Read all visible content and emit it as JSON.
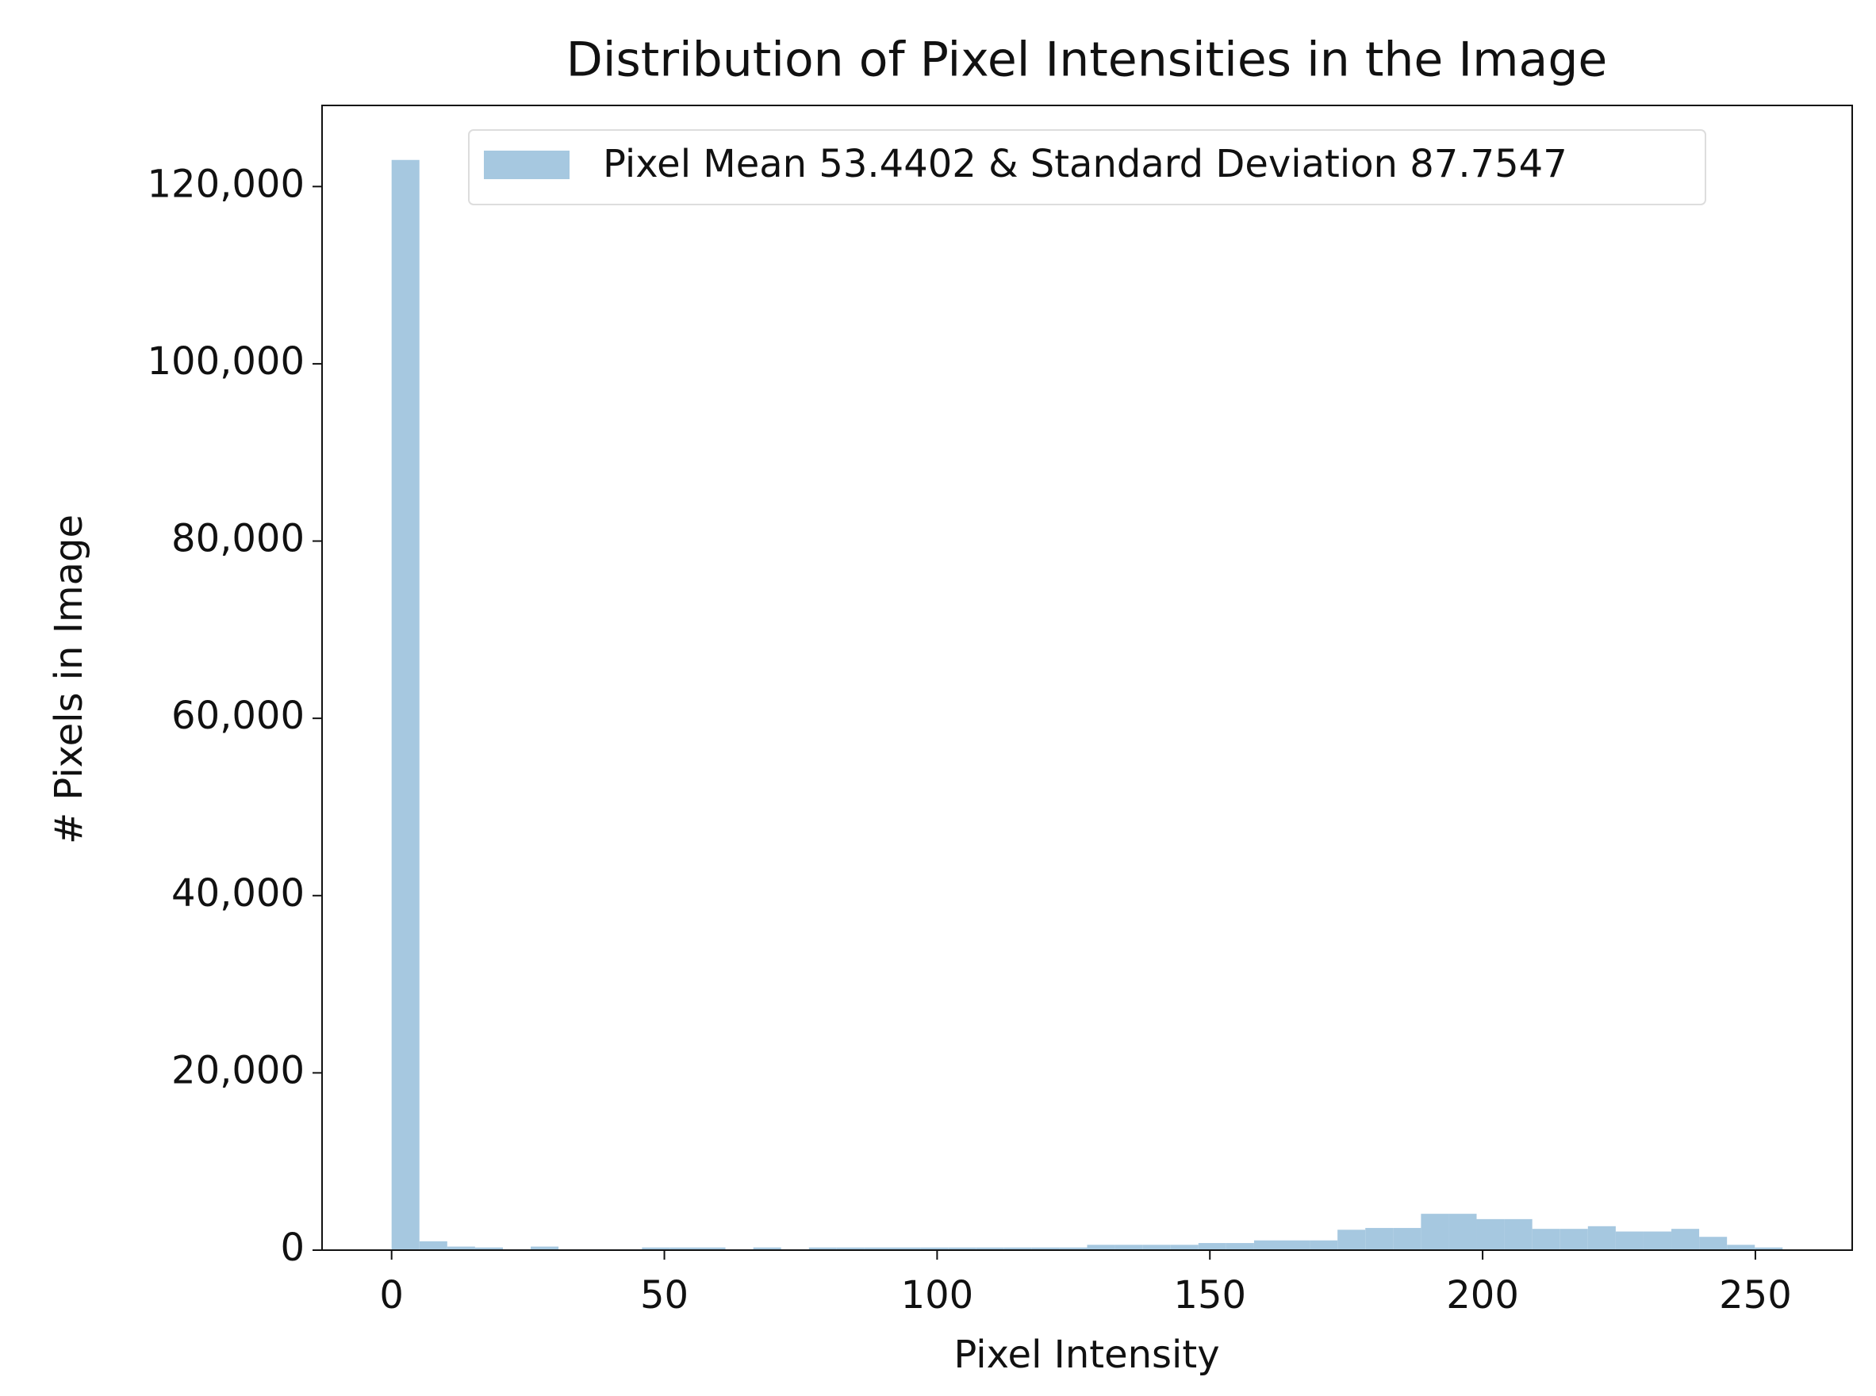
{
  "chart_data": {
    "type": "histogram",
    "title": "Distribution of Pixel Intensities in the Image",
    "x_label": "Pixel Intensity",
    "y_label": "# Pixels in Image",
    "bins": [
      0,
      5.1,
      10.2,
      15.3,
      20.4,
      25.5,
      30.6,
      35.7,
      40.8,
      45.9,
      51,
      56.1,
      61.2,
      66.3,
      71.4,
      76.5,
      81.6,
      86.7,
      91.8,
      96.9,
      102,
      107.1,
      112.2,
      117.3,
      122.4,
      127.5,
      132.6,
      137.7,
      142.8,
      147.9,
      153,
      158.1,
      163.2,
      168.3,
      173.4,
      178.5,
      183.6,
      188.7,
      193.8,
      198.9,
      204,
      209.1,
      214.2,
      219.3,
      224.4,
      229.5,
      234.6,
      239.7,
      244.8,
      249.9,
      255
    ],
    "series": [
      {
        "name": "Pixel Mean 53.4402 & Standard Deviation 87.7547",
        "color": "#a6c8e0",
        "values": [
          123000,
          1000,
          400,
          300,
          100,
          400,
          100,
          100,
          100,
          300,
          300,
          300,
          100,
          300,
          100,
          300,
          300,
          300,
          300,
          300,
          300,
          300,
          300,
          300,
          300,
          600,
          600,
          600,
          600,
          800,
          800,
          1100,
          1100,
          1100,
          2300,
          2500,
          2500,
          4100,
          4100,
          3500,
          3500,
          2400,
          2400,
          2700,
          2100,
          2100,
          2400,
          1500,
          600,
          300
        ]
      }
    ],
    "xlim": [
      -12.75,
      267.75
    ],
    "ylim": [
      0,
      129150
    ],
    "xticks": [
      0,
      50,
      100,
      150,
      200,
      250
    ],
    "yticks": [
      0,
      {
        "value": 20000,
        "label": "20,000"
      },
      {
        "value": 40000,
        "label": "40,000"
      },
      {
        "value": 60000,
        "label": "60,000"
      },
      {
        "value": 80000,
        "label": "80,000"
      },
      {
        "value": 100000,
        "label": "100,000"
      },
      {
        "value": 120000,
        "label": "120,000"
      }
    ],
    "legend": "upper center",
    "grid": false
  }
}
